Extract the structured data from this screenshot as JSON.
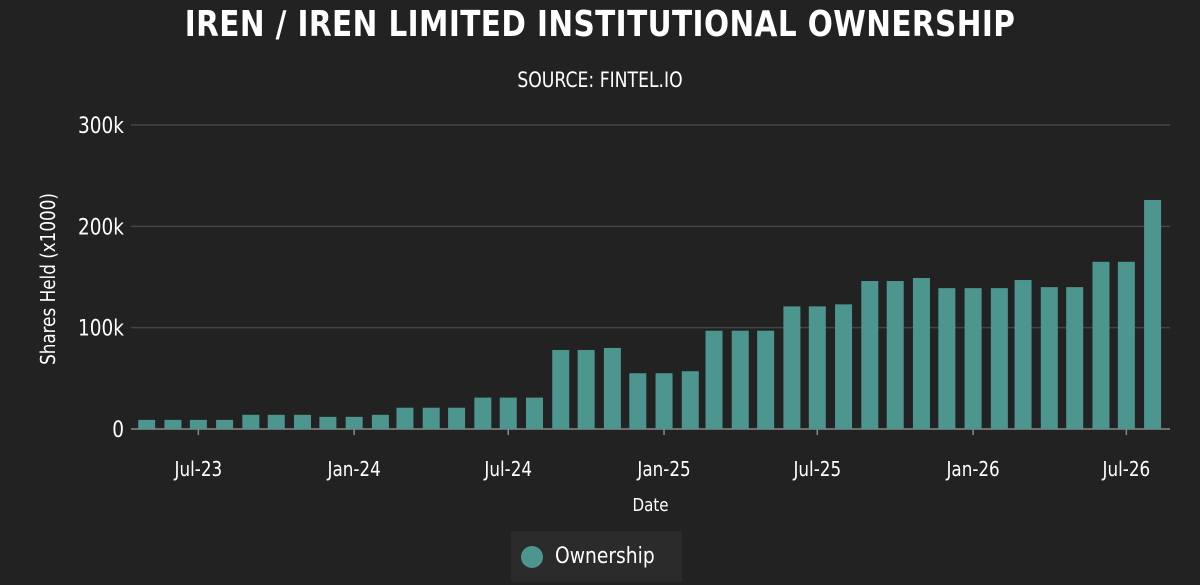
{
  "chart_data": {
    "type": "bar",
    "title": "IREN / IREN LIMITED INSTITUTIONAL OWNERSHIP",
    "subtitle": "SOURCE: FINTEL.IO",
    "xlabel": "Date",
    "ylabel": "Shares Held (x1000)",
    "ylim": [
      0,
      300000
    ],
    "yticks": [
      "0",
      "100k",
      "200k",
      "300k"
    ],
    "ytick_values": [
      0,
      100000,
      200000,
      300000
    ],
    "xtick_labels": [
      "Jul-23",
      "Jan-24",
      "Jul-24",
      "Jan-25",
      "Jul-25",
      "Jan-26",
      "Jul-26"
    ],
    "xtick_dates": [
      "2023-07-01",
      "2024-01-01",
      "2024-07-01",
      "2025-01-01",
      "2025-07-01",
      "2026-01-01",
      "2026-07-01"
    ],
    "x": [
      "2023-05-01",
      "2023-06-01",
      "2023-07-01",
      "2023-08-01",
      "2023-09-01",
      "2023-10-01",
      "2023-11-01",
      "2023-12-01",
      "2024-01-01",
      "2024-02-01",
      "2024-03-01",
      "2024-04-01",
      "2024-05-01",
      "2024-06-01",
      "2024-07-01",
      "2024-08-01",
      "2024-09-01",
      "2024-10-01",
      "2024-11-01",
      "2024-12-01",
      "2025-01-01",
      "2025-02-01",
      "2025-03-01",
      "2025-04-01",
      "2025-05-01",
      "2025-06-01",
      "2025-07-01",
      "2025-08-01",
      "2025-09-01",
      "2025-10-01",
      "2025-11-01",
      "2025-12-01",
      "2026-01-01",
      "2026-02-01",
      "2026-03-01",
      "2026-04-01",
      "2026-05-01",
      "2026-06-01",
      "2026-07-01",
      "2026-08-01"
    ],
    "series": [
      {
        "name": "Ownership",
        "color": "#4d9690",
        "values": [
          9000,
          9000,
          9000,
          9000,
          14000,
          14000,
          14000,
          12000,
          12000,
          14000,
          21000,
          21000,
          21000,
          31000,
          31000,
          31000,
          78000,
          78000,
          80000,
          55000,
          55000,
          57000,
          97000,
          97000,
          97000,
          121000,
          121000,
          123000,
          146000,
          146000,
          149000,
          139000,
          139000,
          139000,
          147000,
          140000,
          140000,
          165000,
          165000,
          226000
        ]
      }
    ],
    "grid": true,
    "legend_position": "bottom"
  },
  "colors": {
    "background": "#222222",
    "bar": "#4d9690",
    "grid": "#444444",
    "axis": "#888888"
  }
}
